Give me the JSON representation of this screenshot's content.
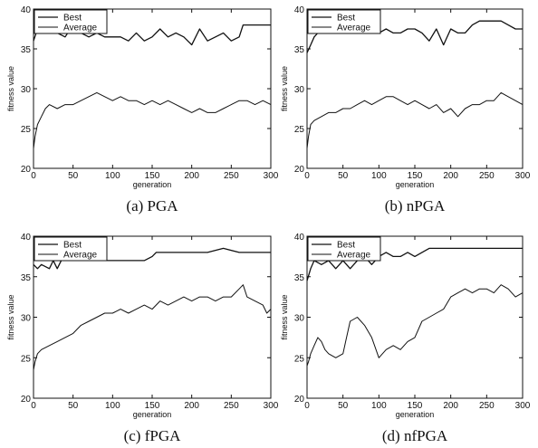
{
  "chart_data": [
    {
      "type": "line",
      "caption": "(a) PGA",
      "xlabel": "generation",
      "ylabel": "fitness value",
      "xlim": [
        0,
        300
      ],
      "ylim": [
        20,
        40
      ],
      "xticks": [
        "0",
        "50",
        "100",
        "150",
        "200",
        "250",
        "300"
      ],
      "yticks": [
        "20",
        "25",
        "30",
        "35",
        "40"
      ],
      "legend_position": "top-left",
      "series": [
        {
          "name": "Best",
          "x": [
            0,
            5,
            10,
            20,
            30,
            40,
            50,
            60,
            70,
            80,
            90,
            100,
            110,
            120,
            130,
            140,
            150,
            160,
            170,
            180,
            190,
            200,
            210,
            220,
            230,
            240,
            250,
            260,
            265,
            270,
            280,
            290,
            300
          ],
          "y": [
            36.0,
            37.5,
            38.0,
            38.0,
            37.0,
            36.5,
            38.0,
            37.0,
            36.5,
            37.0,
            36.5,
            36.5,
            36.5,
            36.0,
            37.0,
            36.0,
            36.5,
            37.5,
            36.5,
            37.0,
            36.5,
            35.5,
            37.5,
            36.0,
            36.5,
            37.0,
            36.0,
            36.5,
            38.0,
            38.0,
            38.0,
            38.0,
            38.0
          ]
        },
        {
          "name": "Average",
          "x": [
            0,
            2,
            5,
            10,
            15,
            20,
            30,
            40,
            50,
            60,
            70,
            80,
            90,
            100,
            110,
            120,
            130,
            140,
            150,
            160,
            170,
            180,
            190,
            200,
            210,
            220,
            230,
            240,
            250,
            260,
            270,
            280,
            290,
            300
          ],
          "y": [
            22.5,
            24.0,
            25.5,
            26.5,
            27.5,
            28.0,
            27.5,
            28.0,
            28.0,
            28.5,
            29.0,
            29.5,
            29.0,
            28.5,
            29.0,
            28.5,
            28.5,
            28.0,
            28.5,
            28.0,
            28.5,
            28.0,
            27.5,
            27.0,
            27.5,
            27.0,
            27.0,
            27.5,
            28.0,
            28.5,
            28.5,
            28.0,
            28.5,
            28.0
          ]
        }
      ]
    },
    {
      "type": "line",
      "caption": "(b) nPGA",
      "xlabel": "generation",
      "ylabel": "fitness value",
      "xlim": [
        0,
        300
      ],
      "ylim": [
        20,
        40
      ],
      "xticks": [
        "0",
        "50",
        "100",
        "150",
        "200",
        "250",
        "300"
      ],
      "yticks": [
        "20",
        "25",
        "30",
        "35",
        "40"
      ],
      "legend_position": "top-left",
      "series": [
        {
          "name": "Best",
          "x": [
            0,
            5,
            10,
            20,
            30,
            40,
            50,
            60,
            70,
            80,
            90,
            100,
            110,
            120,
            130,
            140,
            150,
            160,
            170,
            180,
            190,
            200,
            210,
            220,
            230,
            240,
            250,
            260,
            270,
            280,
            290,
            300
          ],
          "y": [
            34.5,
            35.5,
            36.5,
            37.5,
            37.0,
            38.0,
            37.5,
            37.0,
            38.0,
            37.5,
            38.0,
            37.0,
            37.5,
            37.0,
            37.0,
            37.5,
            37.5,
            37.0,
            36.0,
            37.5,
            35.5,
            37.5,
            37.0,
            37.0,
            38.0,
            38.5,
            38.5,
            38.5,
            38.5,
            38.0,
            37.5,
            37.5
          ]
        },
        {
          "name": "Average",
          "x": [
            0,
            2,
            5,
            10,
            20,
            30,
            40,
            50,
            60,
            70,
            80,
            90,
            100,
            110,
            120,
            130,
            140,
            150,
            160,
            170,
            180,
            190,
            200,
            210,
            220,
            230,
            240,
            250,
            260,
            270,
            280,
            290,
            300
          ],
          "y": [
            22.5,
            24.0,
            25.5,
            26.0,
            26.5,
            27.0,
            27.0,
            27.5,
            27.5,
            28.0,
            28.5,
            28.0,
            28.5,
            29.0,
            29.0,
            28.5,
            28.0,
            28.5,
            28.0,
            27.5,
            28.0,
            27.0,
            27.5,
            26.5,
            27.5,
            28.0,
            28.0,
            28.5,
            28.5,
            29.5,
            29.0,
            28.5,
            28.0
          ]
        }
      ]
    },
    {
      "type": "line",
      "caption": "(c) fPGA",
      "xlabel": "generation",
      "ylabel": "fitness value",
      "xlim": [
        0,
        300
      ],
      "ylim": [
        20,
        40
      ],
      "xticks": [
        "0",
        "50",
        "100",
        "150",
        "200",
        "250",
        "300"
      ],
      "yticks": [
        "20",
        "25",
        "30",
        "35",
        "40"
      ],
      "legend_position": "top-left",
      "series": [
        {
          "name": "Best",
          "x": [
            0,
            5,
            10,
            20,
            25,
            30,
            35,
            40,
            50,
            60,
            70,
            80,
            90,
            100,
            110,
            120,
            130,
            140,
            150,
            155,
            160,
            170,
            180,
            200,
            220,
            240,
            260,
            280,
            300
          ],
          "y": [
            36.5,
            36.0,
            36.5,
            36.0,
            37.0,
            36.0,
            37.0,
            37.0,
            37.0,
            37.0,
            37.0,
            37.0,
            37.0,
            37.0,
            37.0,
            37.0,
            37.0,
            37.0,
            37.5,
            38.0,
            38.0,
            38.0,
            38.0,
            38.0,
            38.0,
            38.5,
            38.0,
            38.0,
            38.0
          ]
        },
        {
          "name": "Average",
          "x": [
            0,
            2,
            5,
            10,
            20,
            30,
            40,
            50,
            60,
            70,
            80,
            90,
            100,
            110,
            120,
            130,
            140,
            150,
            160,
            170,
            180,
            190,
            200,
            210,
            220,
            230,
            240,
            250,
            260,
            265,
            270,
            280,
            290,
            295,
            300
          ],
          "y": [
            23.5,
            24.5,
            25.5,
            26.0,
            26.5,
            27.0,
            27.5,
            28.0,
            29.0,
            29.5,
            30.0,
            30.5,
            30.5,
            31.0,
            30.5,
            31.0,
            31.5,
            31.0,
            32.0,
            31.5,
            32.0,
            32.5,
            32.0,
            32.5,
            32.5,
            32.0,
            32.5,
            32.5,
            33.5,
            34.0,
            32.5,
            32.0,
            31.5,
            30.5,
            31.0
          ]
        }
      ]
    },
    {
      "type": "line",
      "caption": "(d) nfPGA",
      "xlabel": "generation",
      "ylabel": "fitness value",
      "xlim": [
        0,
        300
      ],
      "ylim": [
        20,
        40
      ],
      "xticks": [
        "0",
        "50",
        "100",
        "150",
        "200",
        "250",
        "300"
      ],
      "yticks": [
        "20",
        "25",
        "30",
        "35",
        "40"
      ],
      "legend_position": "top-left",
      "series": [
        {
          "name": "Best",
          "x": [
            0,
            5,
            10,
            20,
            30,
            40,
            50,
            60,
            70,
            80,
            90,
            100,
            110,
            120,
            130,
            140,
            150,
            160,
            170,
            180,
            190,
            200,
            220,
            240,
            260,
            280,
            300
          ],
          "y": [
            34.5,
            36.0,
            37.0,
            36.5,
            37.0,
            36.0,
            37.0,
            36.0,
            37.0,
            37.5,
            36.5,
            37.5,
            38.0,
            37.5,
            37.5,
            38.0,
            37.5,
            38.0,
            38.5,
            38.5,
            38.5,
            38.5,
            38.5,
            38.5,
            38.5,
            38.5,
            38.5
          ]
        },
        {
          "name": "Average",
          "x": [
            0,
            2,
            5,
            10,
            15,
            20,
            25,
            30,
            40,
            50,
            55,
            60,
            70,
            80,
            90,
            100,
            105,
            110,
            120,
            130,
            140,
            150,
            160,
            170,
            180,
            190,
            200,
            210,
            220,
            230,
            240,
            250,
            260,
            270,
            280,
            290,
            300
          ],
          "y": [
            24.0,
            24.5,
            25.5,
            26.5,
            27.5,
            27.0,
            26.0,
            25.5,
            25.0,
            25.5,
            27.5,
            29.5,
            30.0,
            29.0,
            27.5,
            25.0,
            25.5,
            26.0,
            26.5,
            26.0,
            27.0,
            27.5,
            29.5,
            30.0,
            30.5,
            31.0,
            32.5,
            33.0,
            33.5,
            33.0,
            33.5,
            33.5,
            33.0,
            34.0,
            33.5,
            32.5,
            33.0
          ]
        }
      ]
    }
  ]
}
